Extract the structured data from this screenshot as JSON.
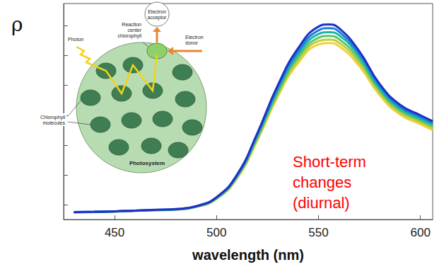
{
  "chart_data": {
    "type": "line",
    "y_label": "ρ",
    "x_label": "wavelength (nm)",
    "annotation": "Short-term changes (diurnal)",
    "diagram_labels": {
      "electron_acceptor": "Electron acceptor",
      "reaction_center": "Reaction center chlorophyll",
      "photon": "Photon",
      "electron_donor": "Electron donor",
      "chlorophyll": "Chlorophyll molecules",
      "photosystem": "Photosystem"
    },
    "x": [
      430,
      440,
      450,
      460,
      470,
      480,
      490,
      500,
      510,
      520,
      530,
      540,
      550,
      555,
      560,
      570,
      580,
      590,
      600,
      606
    ],
    "series": [
      {
        "color": "#f2d13a",
        "values": [
          0.0148,
          0.015,
          0.0153,
          0.0158,
          0.0162,
          0.0166,
          0.0184,
          0.0238,
          0.0375,
          0.063,
          0.0925,
          0.115,
          0.1275,
          0.1285,
          0.1265,
          0.113,
          0.0935,
          0.0805,
          0.074,
          0.07
        ]
      },
      {
        "color": "#b9d13c",
        "values": [
          0.0148,
          0.015,
          0.0153,
          0.0158,
          0.0163,
          0.0167,
          0.0185,
          0.024,
          0.038,
          0.064,
          0.0938,
          0.1168,
          0.1297,
          0.1308,
          0.1288,
          0.115,
          0.095,
          0.0818,
          0.0752,
          0.0713
        ]
      },
      {
        "color": "#5fc46a",
        "values": [
          0.0149,
          0.0151,
          0.0154,
          0.0159,
          0.0163,
          0.0167,
          0.0186,
          0.0242,
          0.0385,
          0.065,
          0.0952,
          0.1188,
          0.132,
          0.1333,
          0.1312,
          0.1172,
          0.0966,
          0.0832,
          0.0765,
          0.0726
        ]
      },
      {
        "color": "#1fb3a8",
        "values": [
          0.0149,
          0.0151,
          0.0154,
          0.0159,
          0.0164,
          0.0168,
          0.0187,
          0.0245,
          0.039,
          0.066,
          0.0968,
          0.1208,
          0.1345,
          0.1358,
          0.1338,
          0.1193,
          0.098,
          0.0845,
          0.0777,
          0.0738
        ]
      },
      {
        "color": "#1a7fd6",
        "values": [
          0.015,
          0.0152,
          0.0155,
          0.016,
          0.0164,
          0.0169,
          0.0189,
          0.0248,
          0.0395,
          0.067,
          0.0985,
          0.123,
          0.137,
          0.1385,
          0.1362,
          0.1212,
          0.0995,
          0.0857,
          0.0788,
          0.075
        ]
      },
      {
        "color": "#1f2fc8",
        "values": [
          0.015,
          0.0152,
          0.0155,
          0.016,
          0.0165,
          0.017,
          0.019,
          0.025,
          0.04,
          0.068,
          0.1,
          0.125,
          0.1395,
          0.141,
          0.1385,
          0.123,
          0.101,
          0.087,
          0.08,
          0.076
        ]
      }
    ],
    "xlim": [
      425,
      606
    ],
    "xticks": [
      450,
      500,
      550,
      600
    ],
    "ylim": [
      0.01,
      0.155
    ],
    "yticks": [
      0.02,
      0.04,
      0.06,
      0.08,
      0.1,
      0.12,
      0.14
    ],
    "tick_labels": "x",
    "grid": false
  }
}
